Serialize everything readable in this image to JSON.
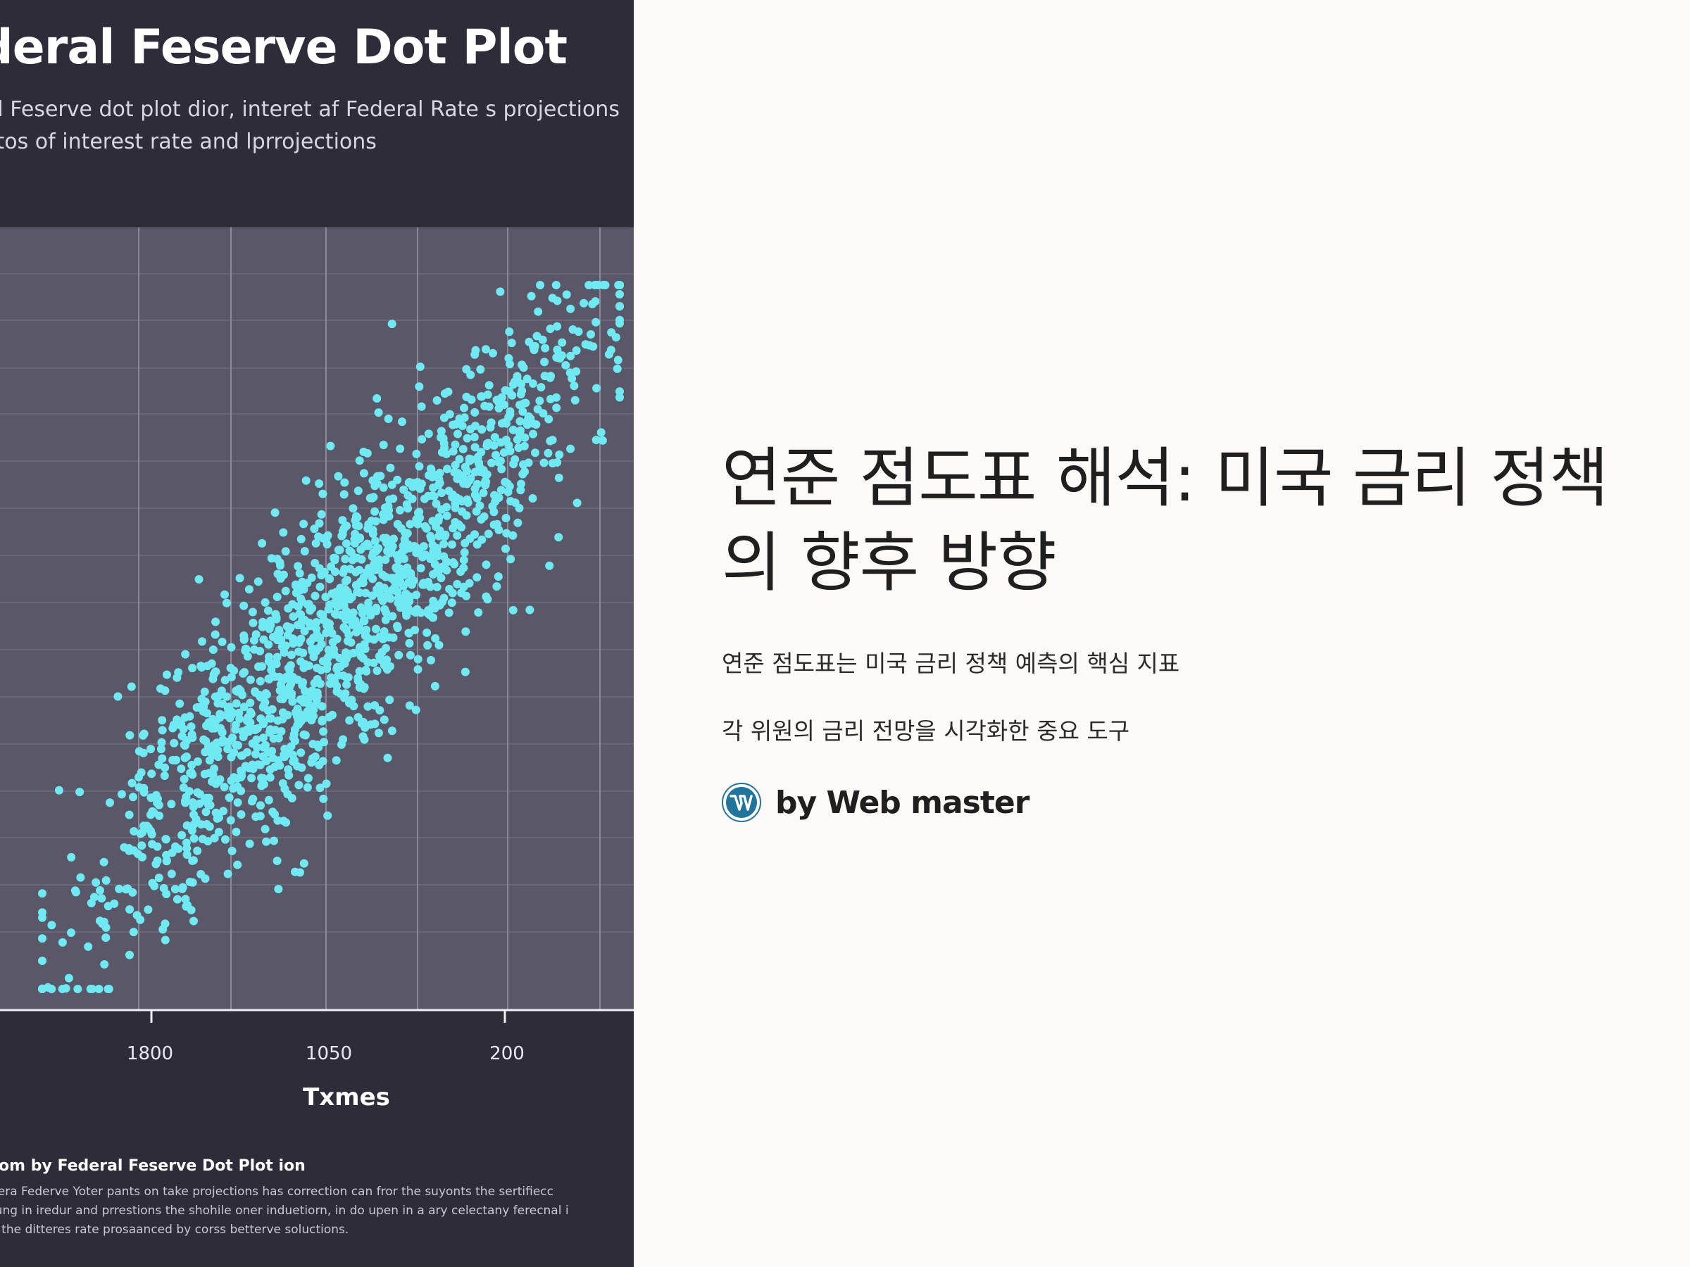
{
  "hero": {
    "title": "deral Feserve Dot Plot",
    "subtitle_line1": "al Feserve dot plot dior, interet af Federal Rate s projections",
    "subtitle_line2": "ctos of interest rate and lprrojections",
    "caption_title": "tiom by Federal Feserve Dot Plot ion",
    "caption_lines": [
      "dera Federve Yoter pants on take projections has correction can fror the suyonts the sertifiecc",
      "tung in iredur and prrestions the shohile oner induetiorn, in do upen in a ary celectany ferecnal i",
      "n the ditteres rate prosaanced by corss betterve soluctions."
    ]
  },
  "chart_data": {
    "type": "scatter",
    "xlabel": "Txmes",
    "x_ticks": [
      "1800",
      "1050",
      "200"
    ],
    "series": [
      {
        "color": "#6fe9f2",
        "x": [
          0.05,
          0.1,
          0.15,
          0.2,
          0.25,
          0.3,
          0.35,
          0.4,
          0.45,
          0.5,
          0.55,
          0.6,
          0.65,
          0.7,
          0.75,
          0.8,
          0.85,
          0.9,
          0.95,
          1.0
        ],
        "y": [
          0.08,
          0.14,
          0.2,
          0.27,
          0.33,
          0.38,
          0.45,
          0.5,
          0.55,
          0.6,
          0.64,
          0.68,
          0.72,
          0.76,
          0.8,
          0.83,
          0.86,
          0.9,
          0.93,
          0.97
        ]
      }
    ]
  },
  "article": {
    "title": "연준 점도표 해석: 미국 금리 정책의 향후 방향",
    "desc1": "연준 점도표는 미국 금리 정책 예측의 핵심 지표",
    "desc2": "각 위원의 금리 전망을 시각화한 중요 도구",
    "author": "by Web master",
    "author_icon": "wordpress-icon"
  },
  "colors": {
    "page_background": "#fcf9f7",
    "hero_background": "#2e2c39",
    "plot_background": "#5a5868",
    "dot": "#6fe9f2",
    "wordpress_blue": "#21759b"
  }
}
